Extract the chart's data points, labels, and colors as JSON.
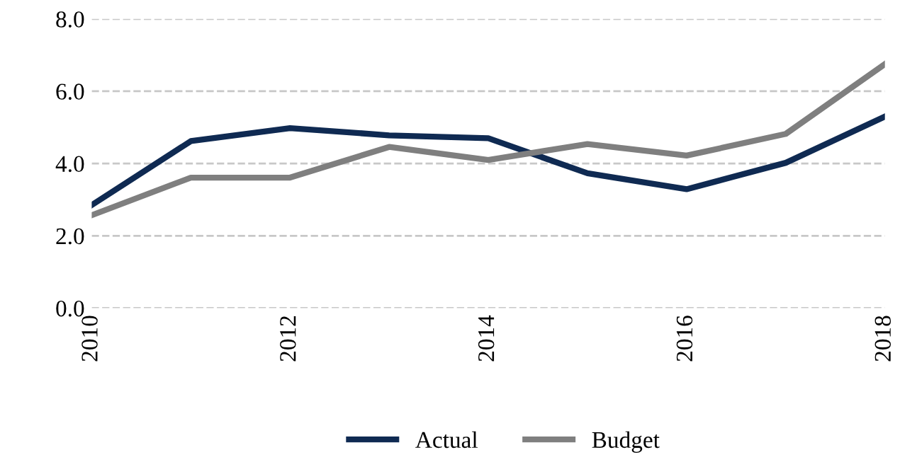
{
  "chart_data": {
    "type": "line",
    "x": [
      2010,
      2011,
      2012,
      2013,
      2014,
      2015,
      2016,
      2017,
      2018
    ],
    "series": [
      {
        "name": "Actual",
        "color": "#0f2a52",
        "values": [
          2.85,
          4.62,
          4.98,
          4.78,
          4.7,
          3.73,
          3.29,
          4.02,
          5.3
        ]
      },
      {
        "name": "Budget",
        "color": "#7f7f7f",
        "values": [
          2.57,
          3.61,
          3.61,
          4.46,
          4.1,
          4.54,
          4.22,
          4.82,
          6.75
        ]
      }
    ],
    "xlim": [
      2010,
      2018
    ],
    "xticks": [
      2010,
      2012,
      2014,
      2016,
      2018
    ],
    "ylim": [
      0,
      8
    ],
    "yticks": [
      {
        "value": 0,
        "label": "0.0"
      },
      {
        "value": 2,
        "label": "2.0"
      },
      {
        "value": 4,
        "label": "4.0"
      },
      {
        "value": 6,
        "label": "6.0"
      },
      {
        "value": 8,
        "label": "8.0"
      }
    ],
    "grid": "y",
    "line_style": "solid",
    "legend": "bottom"
  }
}
